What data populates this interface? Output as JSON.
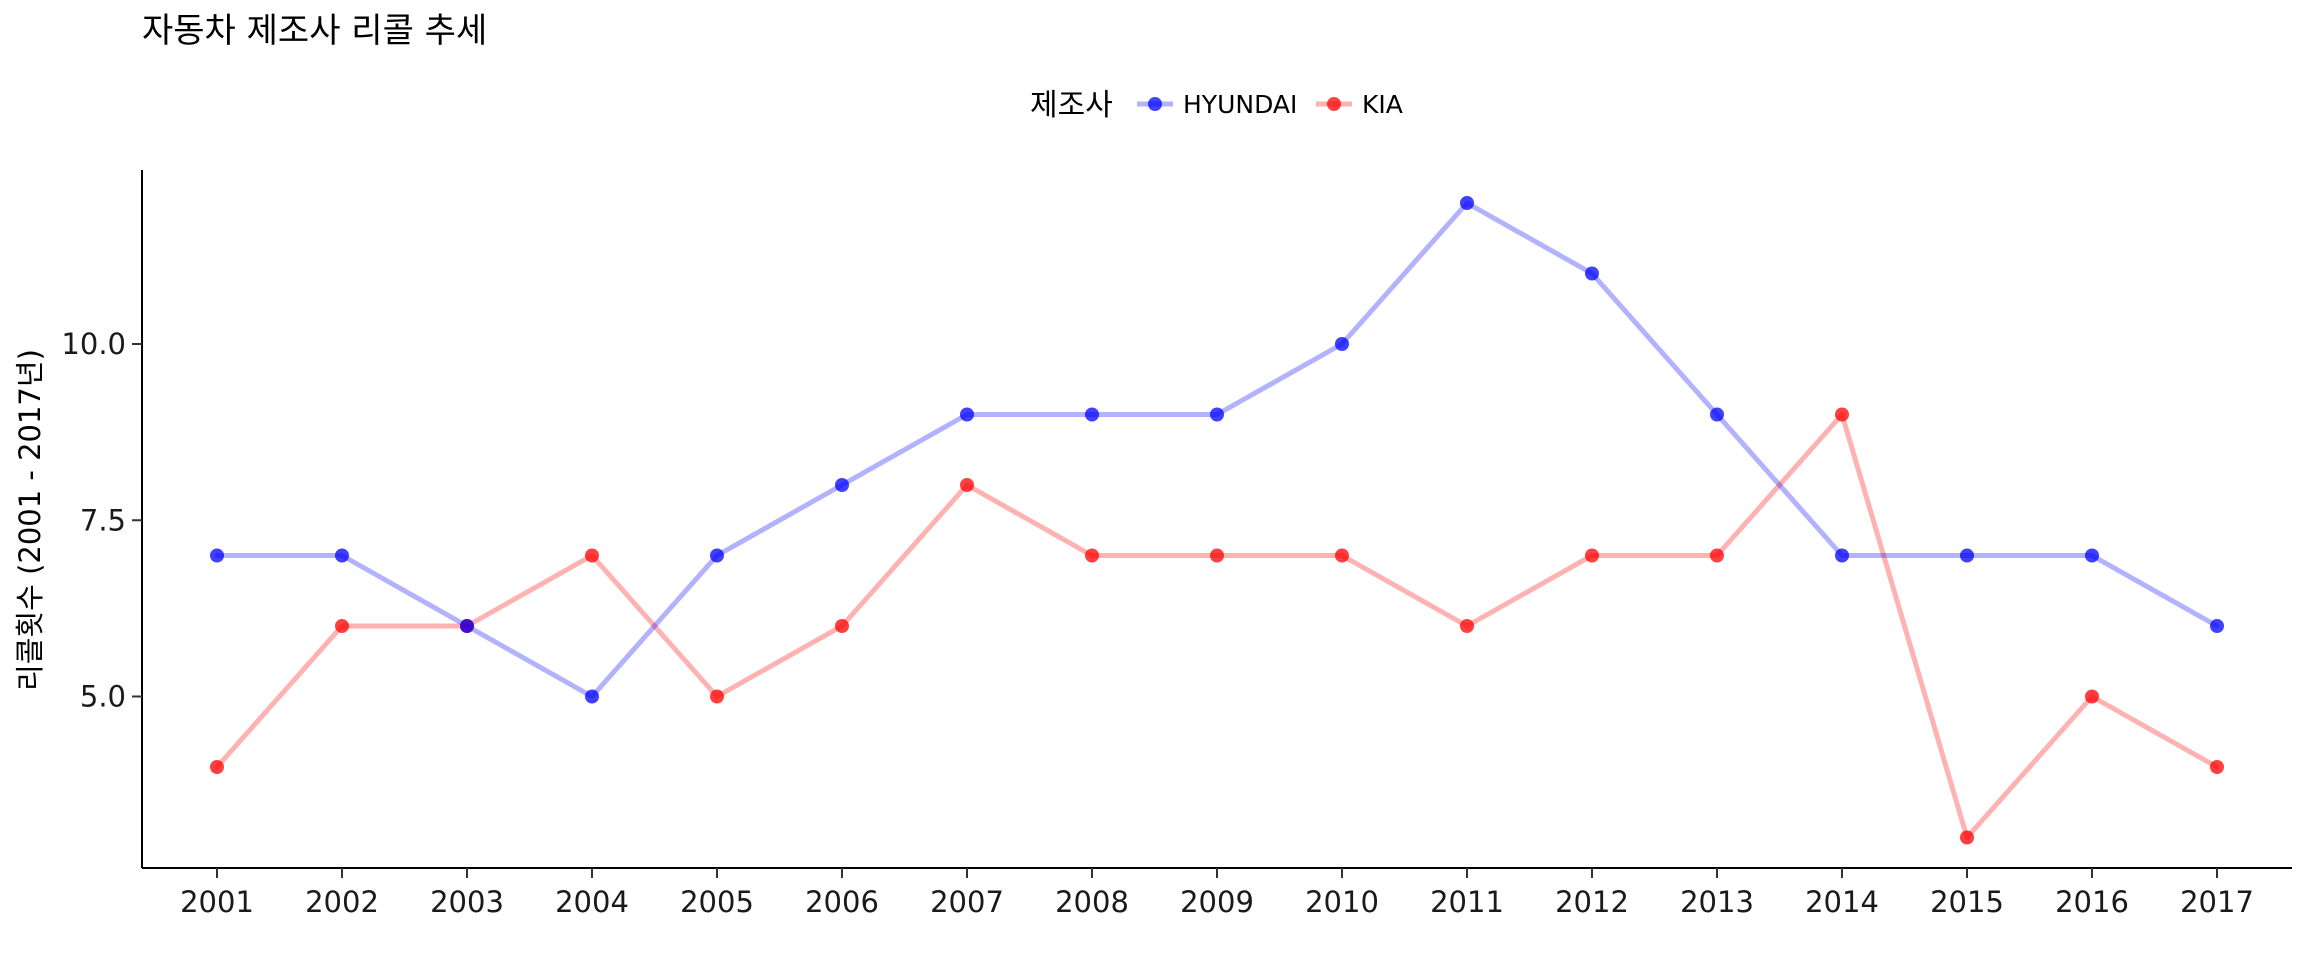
{
  "colors": {
    "HYUNDAI": "#0000ff",
    "KIA": "#ff0000"
  },
  "chart_data": {
    "type": "line",
    "title": "자동차 제조사 리콜 추세",
    "xlabel": "",
    "ylabel": "리콜횟수 (2001 - 2017년)",
    "legend_title": "제조사",
    "legend_position": "top",
    "grid": false,
    "x": [
      "2001",
      "2002",
      "2003",
      "2004",
      "2005",
      "2006",
      "2007",
      "2008",
      "2009",
      "2010",
      "2011",
      "2012",
      "2013",
      "2014",
      "2015",
      "2016",
      "2017"
    ],
    "ylim": [
      2.85,
      12.15
    ],
    "yticks": [
      "5.0",
      "7.5",
      "10.0"
    ],
    "series": [
      {
        "name": "HYUNDAI",
        "values": [
          7,
          7,
          6,
          5,
          7,
          8,
          9,
          9,
          9,
          10,
          12,
          11,
          9,
          7,
          7,
          7,
          6
        ]
      },
      {
        "name": "KIA",
        "values": [
          4,
          6,
          6,
          7,
          5,
          6,
          8,
          7,
          7,
          7,
          6,
          7,
          7,
          9,
          3,
          5,
          4
        ]
      }
    ]
  }
}
